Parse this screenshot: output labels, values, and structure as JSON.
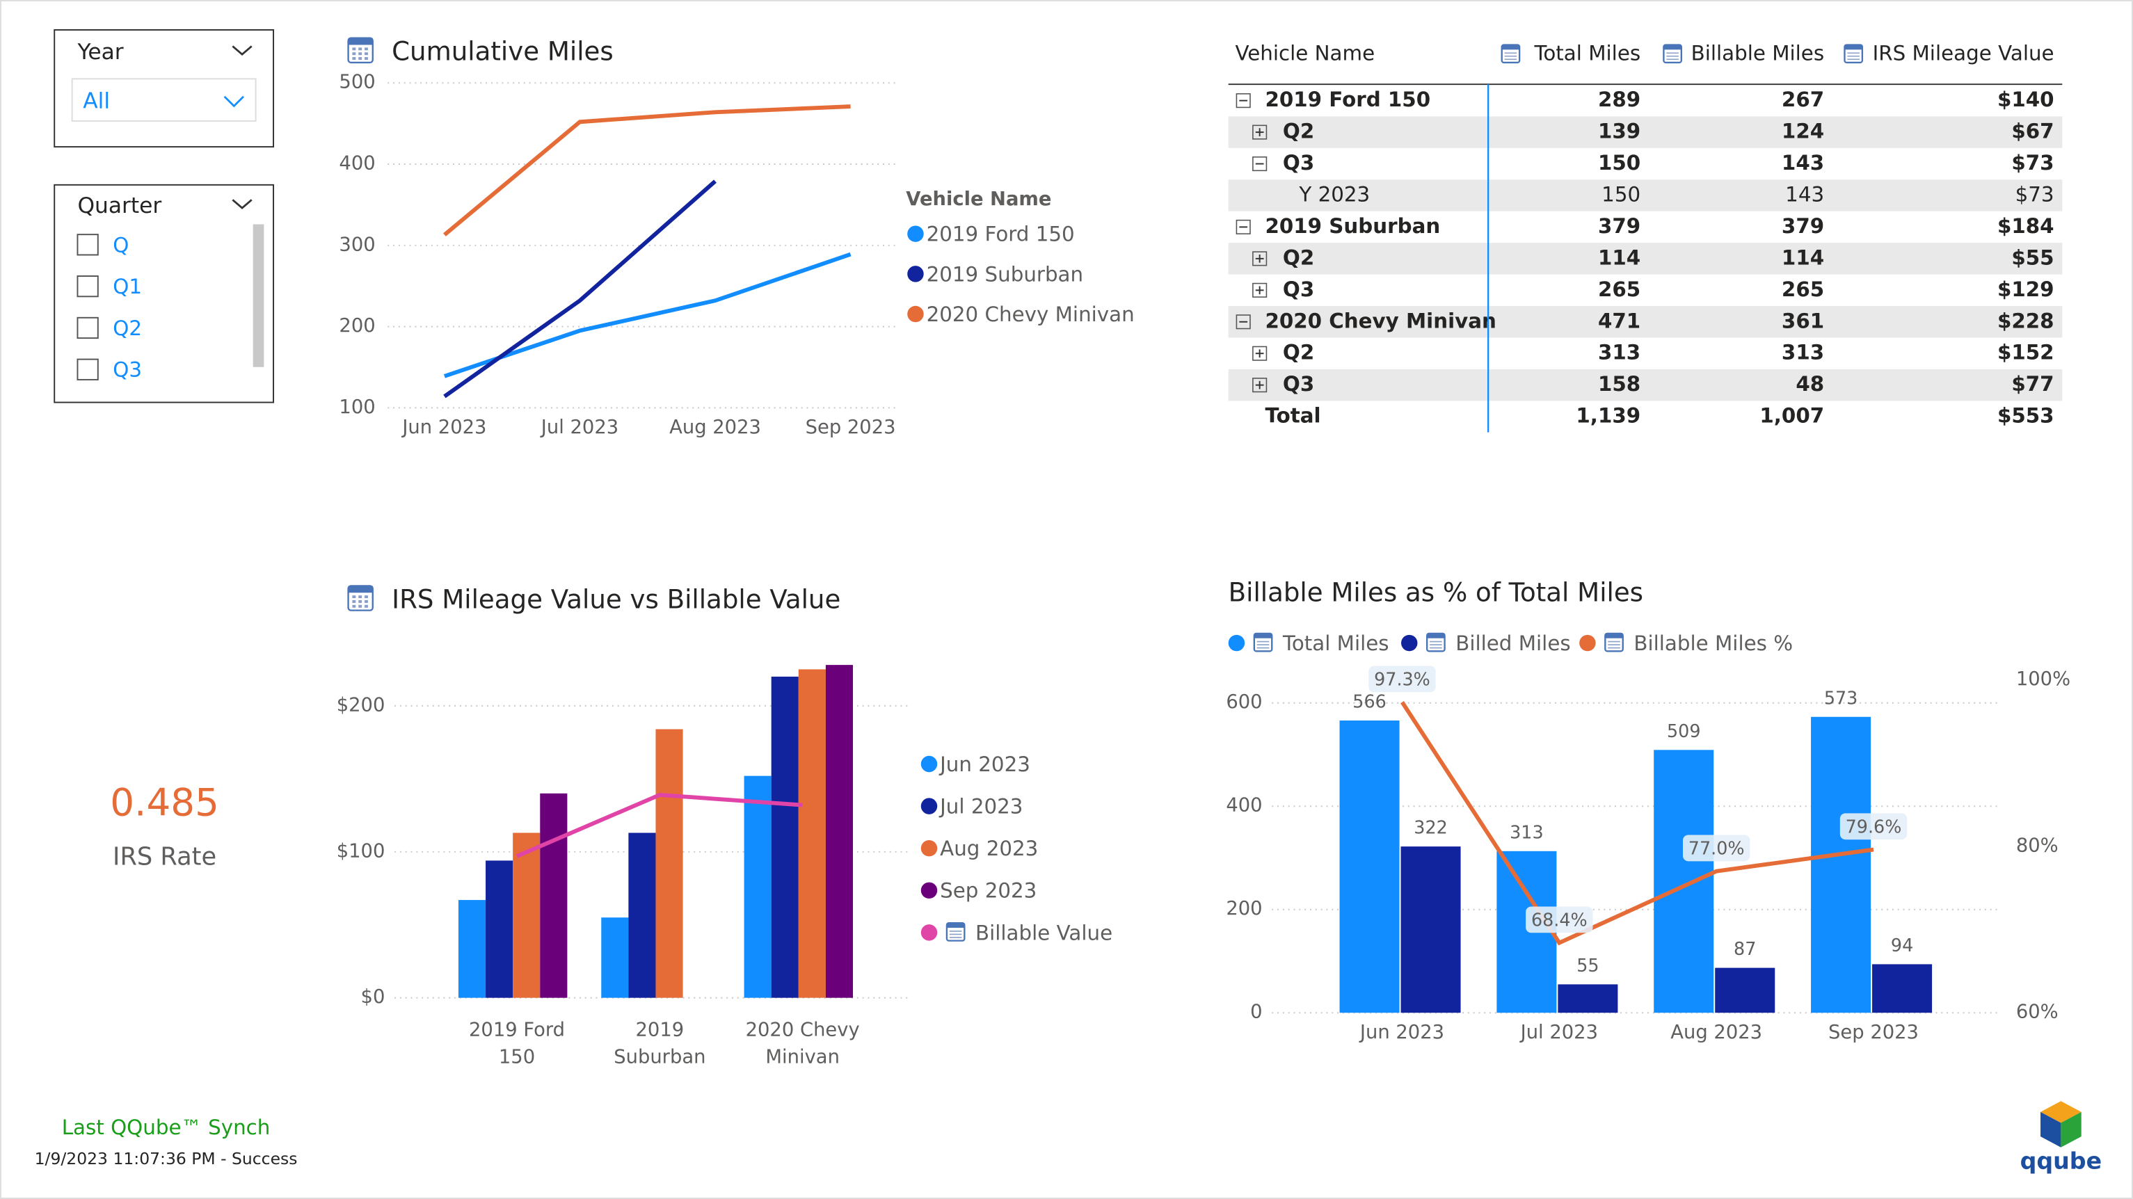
{
  "slicers": [
    {
      "title": "Year",
      "selected": "All"
    },
    {
      "title": "Quarter",
      "options": [
        "Q",
        "Q1",
        "Q2",
        "Q3"
      ]
    }
  ],
  "kpi": {
    "value": "0.485",
    "label": "IRS Rate"
  },
  "footer": {
    "title": "Last QQube™ Synch",
    "status": "1/9/2023 11:07:36 PM - Success"
  },
  "logo": {
    "text": "qqube"
  },
  "table": {
    "headers": [
      "Vehicle Name",
      "Total Miles",
      "Billable Miles",
      "IRS Mileage Value"
    ],
    "vehicles": [
      {
        "name": "2019 Ford 150",
        "values": [
          "289",
          "267",
          "$140"
        ],
        "quarters": [
          {
            "name": "Q2",
            "values": [
              "139",
              "124",
              "$67"
            ]
          },
          {
            "name": "Q3",
            "values": [
              "150",
              "143",
              "$73"
            ],
            "years": [
              {
                "name": "Y 2023",
                "values": [
                  "150",
                  "143",
                  "$73"
                ]
              }
            ]
          }
        ]
      },
      {
        "name": "2019 Suburban",
        "values": [
          "379",
          "379",
          "$184"
        ],
        "quarters": [
          {
            "name": "Q2",
            "values": [
              "114",
              "114",
              "$55"
            ]
          },
          {
            "name": "Q3",
            "values": [
              "265",
              "265",
              "$129"
            ]
          }
        ]
      },
      {
        "name": "2020 Chevy Minivan",
        "values": [
          "471",
          "361",
          "$228"
        ],
        "quarters": [
          {
            "name": "Q2",
            "values": [
              "313",
              "313",
              "$152"
            ]
          },
          {
            "name": "Q3",
            "values": [
              "158",
              "48",
              "$77"
            ]
          }
        ]
      }
    ],
    "total": {
      "label": "Total",
      "values": [
        "1,139",
        "1,007",
        "$553"
      ]
    }
  },
  "chart_data": [
    {
      "type": "line",
      "title": "Cumulative Miles",
      "legend_title": "Vehicle Name",
      "categories": [
        "Jun 2023",
        "Jul 2023",
        "Aug 2023",
        "Sep 2023"
      ],
      "series": [
        {
          "name": "2019 Ford 150",
          "color": "#118dff",
          "values": [
            139,
            195,
            232,
            289
          ]
        },
        {
          "name": "2019 Suburban",
          "color": "#12239e",
          "values": [
            114,
            232,
            379,
            null
          ]
        },
        {
          "name": "2020 Chevy Minivan",
          "color": "#e66c37",
          "values": [
            313,
            452,
            464,
            471
          ]
        }
      ],
      "ylim": [
        100,
        500
      ],
      "yticks": [
        100,
        200,
        300,
        400,
        500
      ],
      "grid": true
    },
    {
      "type": "bar",
      "title": "IRS Mileage Value vs Billable Value",
      "categories": [
        "2019 Ford 150",
        "2019 Suburban",
        "2020 Chevy Minivan"
      ],
      "series": [
        {
          "name": "Jun 2023",
          "color": "#118dff",
          "values": [
            67,
            55,
            152
          ]
        },
        {
          "name": "Jul 2023",
          "color": "#12239e",
          "values": [
            94,
            113,
            220
          ]
        },
        {
          "name": "Aug 2023",
          "color": "#e66c37",
          "values": [
            113,
            184,
            225
          ]
        },
        {
          "name": "Sep 2023",
          "color": "#6b007b",
          "values": [
            140,
            null,
            228
          ]
        },
        {
          "name": "Billable Value",
          "type": "line",
          "color": "#e044a7",
          "values": [
            97,
            139,
            132
          ]
        }
      ],
      "ylim": [
        0,
        230
      ],
      "yticks": [
        {
          "value": 0,
          "label": "$0"
        },
        {
          "value": 100,
          "label": "$100"
        },
        {
          "value": 200,
          "label": "$200"
        }
      ],
      "grid": true
    },
    {
      "type": "bar",
      "title": "Billable Miles as % of Total Miles",
      "categories": [
        "Jun 2023",
        "Jul 2023",
        "Aug 2023",
        "Sep 2023"
      ],
      "series": [
        {
          "name": "Total Miles",
          "color": "#118dff",
          "values": [
            566,
            313,
            509,
            573
          ]
        },
        {
          "name": "Billed Miles",
          "color": "#12239e",
          "values": [
            322,
            55,
            87,
            94
          ]
        },
        {
          "name": "Billable Miles %",
          "type": "line",
          "axis": "y2",
          "color": "#e66c37",
          "values": [
            97.3,
            68.4,
            77.0,
            79.6
          ],
          "value_labels": [
            "97.3%",
            "68.4%",
            "77.0%",
            "79.6%"
          ]
        }
      ],
      "ylim": [
        0,
        645
      ],
      "yticks": [
        0,
        200,
        400,
        600
      ],
      "y2lim": [
        60,
        100
      ],
      "y2ticks": [
        {
          "value": 60,
          "label": "60%"
        },
        {
          "value": 80,
          "label": "80%"
        },
        {
          "value": 100,
          "label": "100%"
        }
      ],
      "grid": true
    }
  ]
}
